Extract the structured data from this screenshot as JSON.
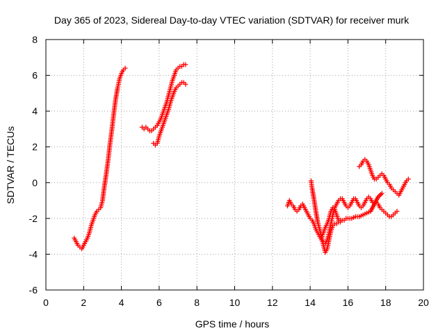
{
  "chart_data": {
    "type": "scatter",
    "title": "Day 365 of 2023, Sidereal Day-to-day VTEC variation (SDTVAR) for receiver murk",
    "xlabel": "GPS time / hours",
    "ylabel": "SDTVAR / TECUs",
    "xlim": [
      0,
      20
    ],
    "ylim": [
      -6,
      8
    ],
    "x_ticks": [
      0,
      2,
      4,
      6,
      8,
      10,
      12,
      14,
      16,
      18,
      20
    ],
    "y_ticks": [
      -6,
      -4,
      -2,
      0,
      2,
      4,
      6,
      8
    ],
    "grid": true,
    "marker": "plus",
    "color": "#ff0000",
    "series": [
      {
        "points": [
          [
            1.5,
            -3.1
          ],
          [
            1.6,
            -3.3
          ],
          [
            1.7,
            -3.5
          ],
          [
            1.8,
            -3.6
          ],
          [
            1.9,
            -3.7
          ],
          [
            2.0,
            -3.5
          ],
          [
            2.1,
            -3.3
          ],
          [
            2.2,
            -3.1
          ],
          [
            2.3,
            -2.8
          ],
          [
            2.4,
            -2.4
          ],
          [
            2.5,
            -2.1
          ],
          [
            2.6,
            -1.8
          ],
          [
            2.7,
            -1.6
          ],
          [
            2.8,
            -1.5
          ],
          [
            2.9,
            -1.4
          ],
          [
            3.0,
            -1.0
          ],
          [
            3.1,
            -0.2
          ],
          [
            3.2,
            0.5
          ],
          [
            3.3,
            1.3
          ],
          [
            3.4,
            2.2
          ],
          [
            3.5,
            3.0
          ],
          [
            3.6,
            3.9
          ],
          [
            3.7,
            4.7
          ],
          [
            3.8,
            5.3
          ],
          [
            3.9,
            5.8
          ],
          [
            4.0,
            6.1
          ],
          [
            4.1,
            6.3
          ],
          [
            4.2,
            6.4
          ]
        ]
      },
      {
        "points": [
          [
            5.1,
            3.1
          ],
          [
            5.2,
            3.0
          ],
          [
            5.3,
            3.1
          ],
          [
            5.4,
            3.0
          ],
          [
            5.5,
            2.9
          ],
          [
            5.6,
            2.9
          ],
          [
            5.7,
            3.0
          ],
          [
            5.8,
            3.1
          ],
          [
            5.9,
            3.2
          ],
          [
            6.0,
            3.4
          ],
          [
            6.1,
            3.6
          ],
          [
            6.2,
            3.9
          ],
          [
            6.3,
            4.2
          ],
          [
            6.4,
            4.5
          ],
          [
            6.5,
            4.9
          ],
          [
            6.6,
            5.3
          ],
          [
            6.7,
            5.7
          ],
          [
            6.8,
            6.0
          ],
          [
            6.9,
            6.3
          ],
          [
            7.0,
            6.4
          ],
          [
            7.1,
            6.5
          ],
          [
            7.2,
            6.5
          ],
          [
            7.3,
            6.6
          ],
          [
            7.4,
            6.6
          ]
        ]
      },
      {
        "points": [
          [
            5.7,
            2.2
          ],
          [
            5.8,
            2.1
          ],
          [
            5.9,
            2.2
          ],
          [
            6.0,
            2.6
          ],
          [
            6.1,
            2.9
          ],
          [
            6.2,
            3.2
          ],
          [
            6.3,
            3.5
          ],
          [
            6.4,
            3.8
          ],
          [
            6.5,
            4.1
          ],
          [
            6.6,
            4.5
          ],
          [
            6.7,
            4.8
          ],
          [
            6.8,
            5.1
          ],
          [
            6.9,
            5.3
          ],
          [
            7.0,
            5.4
          ],
          [
            7.1,
            5.5
          ],
          [
            7.2,
            5.6
          ],
          [
            7.3,
            5.6
          ],
          [
            7.4,
            5.5
          ]
        ]
      },
      {
        "points": [
          [
            12.8,
            -1.3
          ],
          [
            12.9,
            -1.0
          ],
          [
            13.0,
            -1.2
          ],
          [
            13.1,
            -1.3
          ],
          [
            13.2,
            -1.5
          ],
          [
            13.3,
            -1.6
          ],
          [
            13.4,
            -1.5
          ],
          [
            13.5,
            -1.3
          ],
          [
            13.6,
            -1.2
          ],
          [
            13.7,
            -1.4
          ],
          [
            13.8,
            -1.6
          ],
          [
            13.9,
            -1.8
          ],
          [
            14.0,
            -2.0
          ],
          [
            14.1,
            -2.1
          ],
          [
            14.2,
            -2.3
          ],
          [
            14.3,
            -2.6
          ],
          [
            14.4,
            -2.8
          ],
          [
            14.5,
            -3.0
          ],
          [
            14.6,
            -3.2
          ],
          [
            14.7,
            -3.3
          ],
          [
            14.8,
            -3.4
          ],
          [
            14.9,
            -3.2
          ],
          [
            15.0,
            -2.8
          ],
          [
            15.1,
            -2.3
          ],
          [
            15.2,
            -1.8
          ],
          [
            15.3,
            -1.4
          ],
          [
            15.4,
            -1.2
          ],
          [
            15.5,
            -1.0
          ],
          [
            15.6,
            -0.9
          ],
          [
            15.7,
            -0.9
          ],
          [
            15.8,
            -1.1
          ],
          [
            15.9,
            -1.3
          ],
          [
            16.0,
            -1.4
          ],
          [
            16.1,
            -1.3
          ],
          [
            16.2,
            -1.1
          ],
          [
            16.3,
            -0.9
          ],
          [
            16.4,
            -0.9
          ],
          [
            16.5,
            -1.1
          ],
          [
            16.6,
            -1.3
          ],
          [
            16.7,
            -1.4
          ],
          [
            16.8,
            -1.3
          ],
          [
            16.9,
            -1.1
          ],
          [
            17.0,
            -0.9
          ],
          [
            17.1,
            -0.8
          ],
          [
            17.2,
            -0.9
          ],
          [
            17.3,
            -1.1
          ],
          [
            17.4,
            -1.2
          ],
          [
            17.5,
            -1.1
          ],
          [
            17.6,
            -1.2
          ],
          [
            17.7,
            -1.4
          ],
          [
            17.8,
            -1.5
          ],
          [
            17.9,
            -1.6
          ],
          [
            18.0,
            -1.7
          ],
          [
            18.1,
            -1.8
          ],
          [
            18.2,
            -1.9
          ],
          [
            18.3,
            -1.9
          ],
          [
            18.4,
            -1.8
          ],
          [
            18.5,
            -1.7
          ],
          [
            18.6,
            -1.6
          ]
        ]
      },
      {
        "points": [
          [
            14.05,
            0.1
          ],
          [
            14.1,
            -0.3
          ],
          [
            14.2,
            -0.9
          ],
          [
            14.3,
            -1.6
          ],
          [
            14.4,
            -2.2
          ],
          [
            14.5,
            -2.6
          ],
          [
            14.6,
            -3.0
          ],
          [
            14.7,
            -3.5
          ],
          [
            14.8,
            -3.9
          ],
          [
            14.9,
            -3.7
          ],
          [
            15.0,
            -3.2
          ],
          [
            15.1,
            -2.7
          ],
          [
            15.2,
            -2.4
          ],
          [
            15.3,
            -2.3
          ],
          [
            15.4,
            -2.3
          ],
          [
            15.5,
            -2.2
          ],
          [
            15.6,
            -2.1
          ],
          [
            15.7,
            -2.1
          ],
          [
            15.8,
            -2.1
          ],
          [
            15.9,
            -2.0
          ],
          [
            16.0,
            -2.0
          ],
          [
            16.2,
            -2.0
          ],
          [
            16.4,
            -1.9
          ],
          [
            16.6,
            -1.9
          ],
          [
            16.8,
            -1.8
          ],
          [
            17.0,
            -1.7
          ],
          [
            17.2,
            -1.6
          ],
          [
            17.4,
            -1.2
          ],
          [
            17.6,
            -0.8
          ],
          [
            17.8,
            -0.6
          ]
        ]
      },
      {
        "points": [
          [
            14.6,
            -3.1
          ],
          [
            14.7,
            -2.8
          ],
          [
            14.8,
            -2.5
          ],
          [
            14.9,
            -2.3
          ],
          [
            15.0,
            -2.0
          ],
          [
            15.1,
            -1.6
          ],
          [
            15.2,
            -1.4
          ],
          [
            15.3,
            -1.5
          ],
          [
            15.4,
            -1.8
          ],
          [
            15.5,
            -2.1
          ],
          [
            15.6,
            -2.2
          ]
        ]
      },
      {
        "points": [
          [
            16.6,
            0.9
          ],
          [
            16.7,
            1.0
          ],
          [
            16.8,
            1.2
          ],
          [
            16.9,
            1.3
          ],
          [
            17.0,
            1.2
          ],
          [
            17.1,
            1.0
          ],
          [
            17.2,
            0.7
          ],
          [
            17.3,
            0.4
          ],
          [
            17.4,
            0.2
          ],
          [
            17.5,
            0.2
          ],
          [
            17.6,
            0.3
          ],
          [
            17.7,
            0.4
          ],
          [
            17.8,
            0.5
          ],
          [
            17.9,
            0.4
          ],
          [
            18.0,
            0.2
          ],
          [
            18.1,
            0.0
          ],
          [
            18.2,
            -0.1
          ],
          [
            18.3,
            -0.3
          ],
          [
            18.4,
            -0.4
          ],
          [
            18.5,
            -0.5
          ],
          [
            18.6,
            -0.6
          ],
          [
            18.7,
            -0.7
          ],
          [
            18.8,
            -0.5
          ],
          [
            18.9,
            -0.3
          ],
          [
            19.0,
            -0.1
          ],
          [
            19.1,
            0.1
          ],
          [
            19.2,
            0.2
          ]
        ]
      }
    ]
  }
}
